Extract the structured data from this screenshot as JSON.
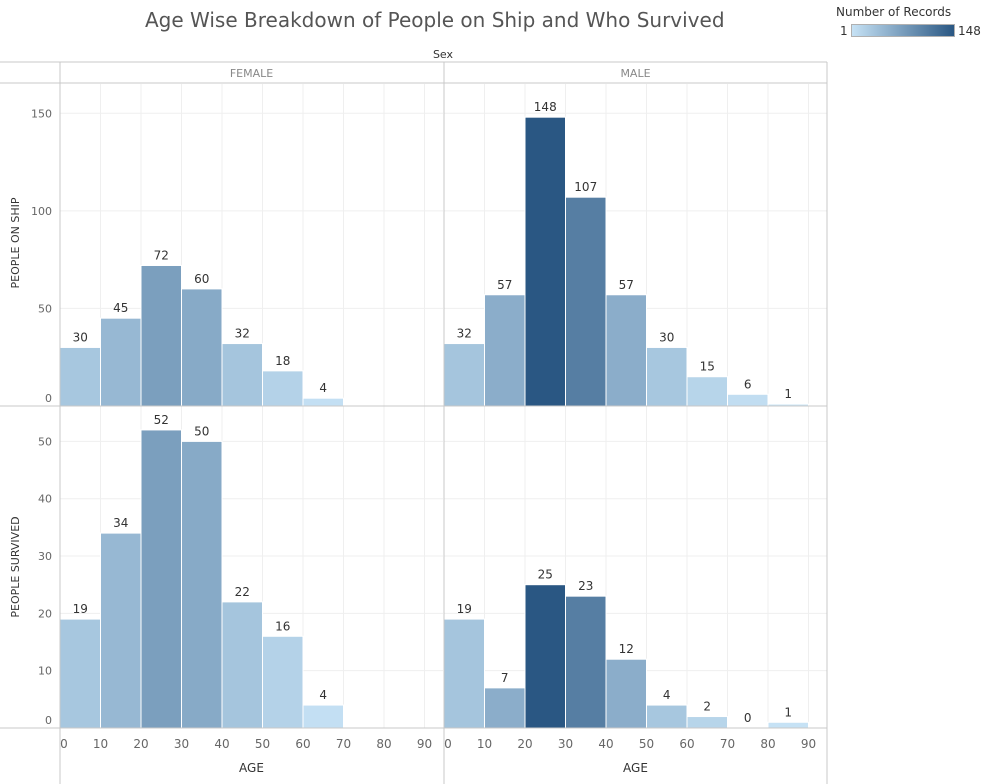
{
  "title": "Age Wise Breakdown of People on Ship and Who Survived",
  "legend": {
    "title": "Number of Records",
    "min_label": "1",
    "max_label": "148",
    "min": 1,
    "max": 148,
    "color_low": "#c6e2f5",
    "color_high": "#2a5783"
  },
  "chart_data": {
    "type": "bar",
    "column_header": "Sex",
    "columns": [
      "FEMALE",
      "MALE"
    ],
    "rows": [
      "PEOPLE ON SHIP",
      "PEOPLE SURVIVED"
    ],
    "xlabel": "AGE",
    "x_ticks": [
      0,
      10,
      20,
      30,
      40,
      50,
      60,
      70,
      80,
      90
    ],
    "xlim": [
      0,
      90
    ],
    "bin_width": 10,
    "grid": true,
    "panels": [
      {
        "row": "PEOPLE ON SHIP",
        "column": "FEMALE",
        "ylim": [
          0,
          165
        ],
        "y_ticks": [
          0,
          50,
          100,
          150
        ],
        "bins": [
          0,
          10,
          20,
          30,
          40,
          50,
          60
        ],
        "values": [
          30,
          45,
          72,
          60,
          32,
          18,
          4
        ],
        "records": [
          30,
          45,
          72,
          60,
          32,
          18,
          4
        ]
      },
      {
        "row": "PEOPLE ON SHIP",
        "column": "MALE",
        "ylim": [
          0,
          165
        ],
        "y_ticks": [
          0,
          50,
          100,
          150
        ],
        "bins": [
          0,
          10,
          20,
          30,
          40,
          50,
          60,
          70,
          80
        ],
        "values": [
          32,
          57,
          148,
          107,
          57,
          30,
          15,
          6,
          1
        ],
        "records": [
          32,
          57,
          148,
          107,
          57,
          30,
          15,
          6,
          1
        ]
      },
      {
        "row": "PEOPLE SURVIVED",
        "column": "FEMALE",
        "ylim": [
          0,
          56
        ],
        "y_ticks": [
          0,
          10,
          20,
          30,
          40,
          50
        ],
        "bins": [
          0,
          10,
          20,
          30,
          40,
          50,
          60
        ],
        "values": [
          19,
          34,
          52,
          50,
          22,
          16,
          4
        ],
        "records": [
          30,
          45,
          72,
          60,
          32,
          18,
          4
        ]
      },
      {
        "row": "PEOPLE SURVIVED",
        "column": "MALE",
        "ylim": [
          0,
          56
        ],
        "y_ticks": [
          0,
          10,
          20,
          30,
          40,
          50
        ],
        "bins": [
          0,
          10,
          20,
          30,
          40,
          50,
          60,
          70,
          80
        ],
        "values": [
          19,
          7,
          25,
          23,
          12,
          4,
          2,
          0,
          1
        ],
        "records": [
          32,
          57,
          148,
          107,
          57,
          30,
          15,
          6,
          1
        ]
      }
    ]
  }
}
